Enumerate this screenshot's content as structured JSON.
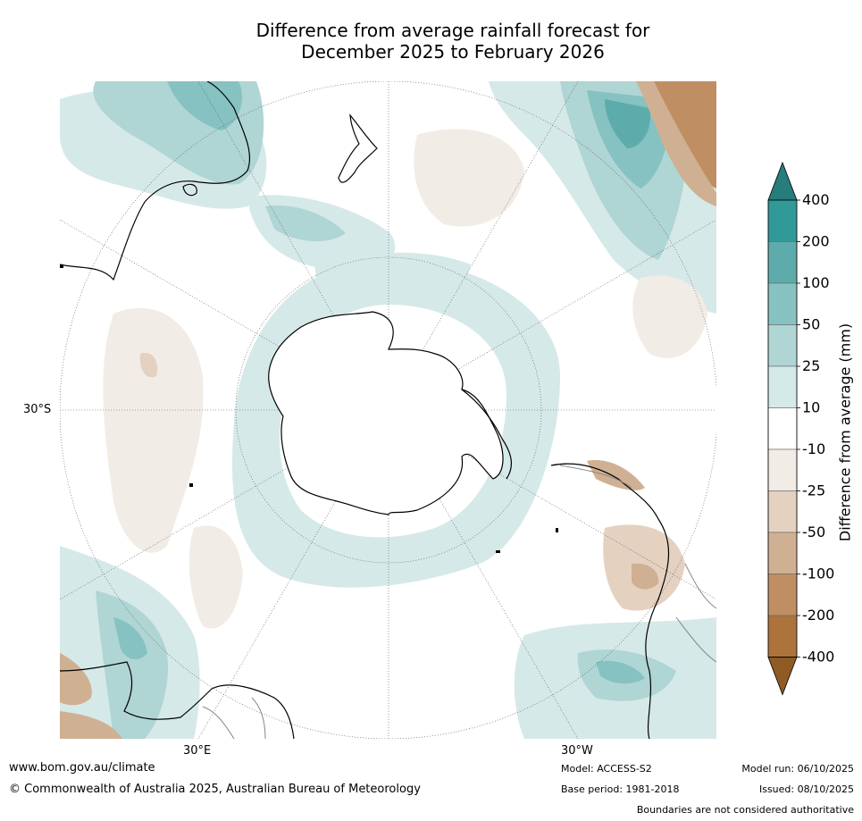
{
  "title": {
    "line1": "Difference from average rainfall forecast for",
    "line2": "December 2025 to February 2026"
  },
  "map": {
    "lat_label": "30°S",
    "lon_label_east": "30°E",
    "lon_label_west": "30°W",
    "colors": {
      "ocean": "#ffffff",
      "land_line": "#000000",
      "wet_1": "#d5e9e8",
      "wet_2": "#afd5d4",
      "wet_3": "#86c2c1",
      "wet_4": "#5dacab",
      "wet_5": "#309a99",
      "wet_6": "#267d7c",
      "dry_1": "#f2ece6",
      "dry_2": "#e4d1c0",
      "dry_3": "#d0b093",
      "dry_4": "#bf8f63",
      "dry_5": "#ad733d",
      "dry_6": "#8f5a24"
    }
  },
  "colorbar": {
    "title": "Difference from average (mm)",
    "tick_labels": [
      "400",
      "200",
      "100",
      "50",
      "25",
      "10",
      "-10",
      "-25",
      "-50",
      "-100",
      "-200",
      "-400"
    ],
    "band_colors": [
      "#309a99",
      "#5dacab",
      "#86c2c1",
      "#afd5d4",
      "#d5e9e8",
      "#ffffff",
      "#f2ece6",
      "#e4d1c0",
      "#d0b093",
      "#bf8f63",
      "#ad733d"
    ],
    "top_arrow_color": "#267d7c",
    "bottom_arrow_color": "#8f5a24"
  },
  "footer": {
    "website": "www.bom.gov.au/climate",
    "copyright": "© Commonwealth of Australia 2025, Australian Bureau of Meteorology",
    "model": "Model: ACCESS-S2",
    "base_period": "Base period: 1981-2018",
    "model_run": "Model run: 06/10/2025",
    "issued": "Issued: 08/10/2025",
    "disclaimer": "Boundaries are not considered authoritative"
  }
}
